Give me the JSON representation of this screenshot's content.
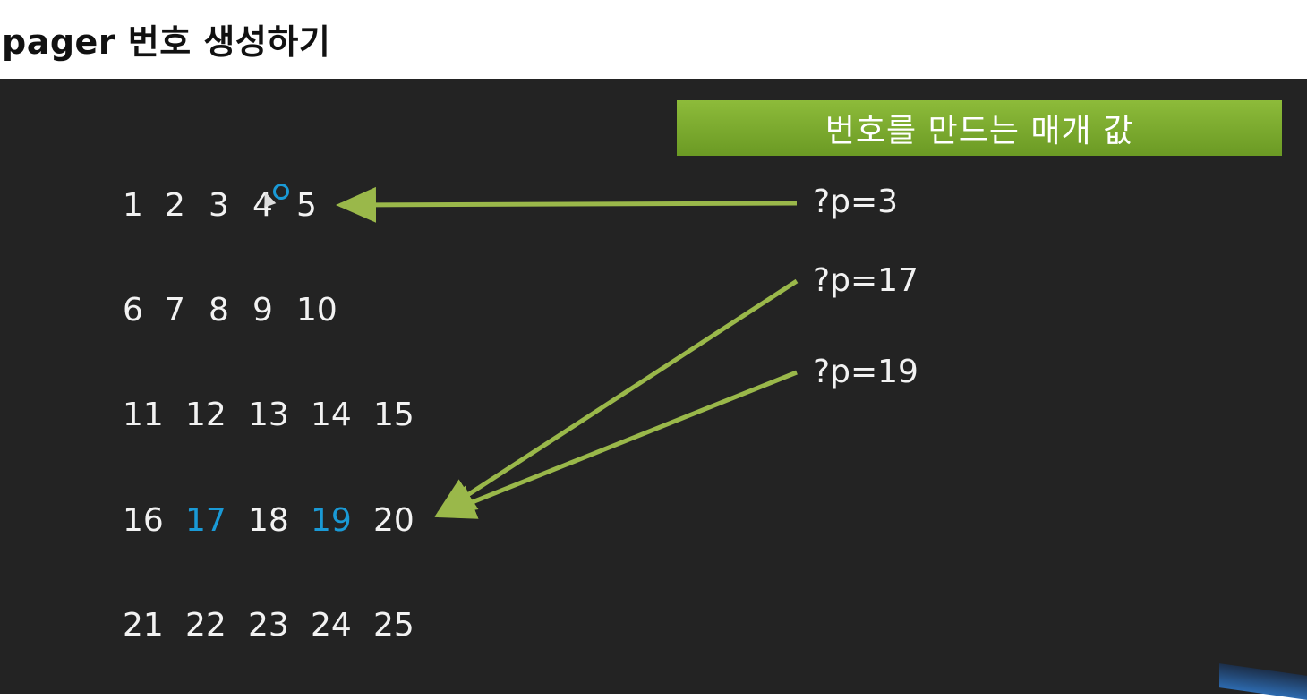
{
  "slide": {
    "title": "pager 번호 생성하기",
    "banner": "번호를 만드는 매개 값",
    "params": {
      "p3": "?p=3",
      "p17": "?p=17",
      "p19": "?p=19"
    },
    "rows": [
      [
        "1",
        "2",
        "3",
        "4",
        "5"
      ],
      [
        "6",
        "7",
        "8",
        "9",
        "10"
      ],
      [
        "11",
        "12",
        "13",
        "14",
        "15"
      ],
      [
        "16",
        "17",
        "18",
        "19",
        "20"
      ],
      [
        "21",
        "22",
        "23",
        "24",
        "25"
      ]
    ],
    "highlighted_numbers": [
      "17",
      "19"
    ],
    "colors": {
      "background": "#232323",
      "arrow": "#9ab84a",
      "highlight": "#1a9ad6",
      "banner": "#7aa92f"
    }
  }
}
